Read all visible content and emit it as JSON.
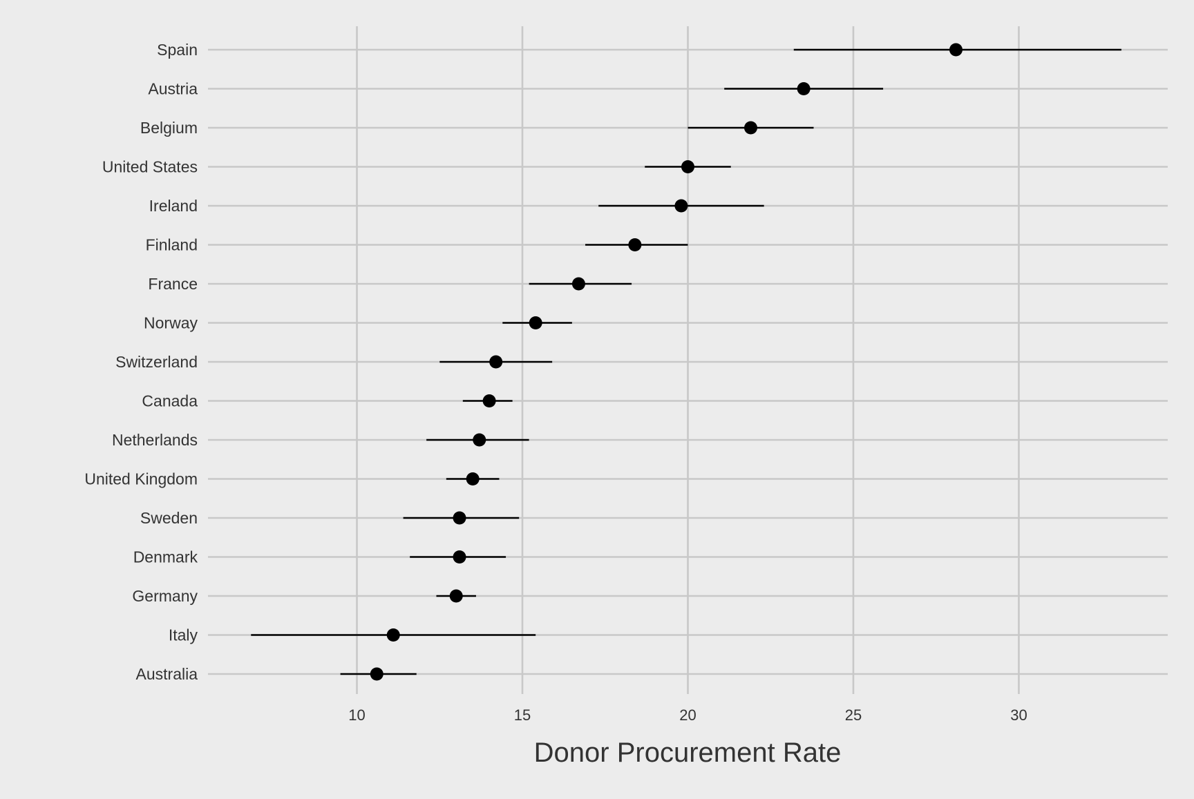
{
  "chart_data": {
    "type": "dot-errorbar",
    "title": "",
    "xlabel": "Donor Procurement Rate",
    "ylabel": "",
    "xlim": [
      5.5,
      34.5
    ],
    "xticks": [
      10,
      15,
      20,
      25,
      30
    ],
    "grid": true,
    "legend": "none",
    "colors": {
      "background": "#ececec",
      "grid": "#c8c8c8",
      "point": "#000000",
      "text": "#333333"
    },
    "categories": [
      "Spain",
      "Austria",
      "Belgium",
      "United States",
      "Ireland",
      "Finland",
      "France",
      "Norway",
      "Switzerland",
      "Canada",
      "Netherlands",
      "United Kingdom",
      "Sweden",
      "Denmark",
      "Germany",
      "Italy",
      "Australia"
    ],
    "values": [
      28.1,
      23.5,
      21.9,
      20.0,
      19.8,
      18.4,
      16.7,
      15.4,
      14.2,
      14.0,
      13.7,
      13.5,
      13.1,
      13.1,
      13.0,
      11.1,
      10.6
    ],
    "lower": [
      23.2,
      21.1,
      20.0,
      18.7,
      17.3,
      16.9,
      15.2,
      14.4,
      12.5,
      13.2,
      12.1,
      12.7,
      11.4,
      11.6,
      12.4,
      6.8,
      9.5
    ],
    "upper": [
      33.1,
      25.9,
      23.8,
      21.3,
      22.3,
      20.0,
      18.3,
      16.5,
      15.9,
      14.7,
      15.2,
      14.3,
      14.9,
      14.5,
      13.6,
      15.4,
      11.8
    ]
  }
}
